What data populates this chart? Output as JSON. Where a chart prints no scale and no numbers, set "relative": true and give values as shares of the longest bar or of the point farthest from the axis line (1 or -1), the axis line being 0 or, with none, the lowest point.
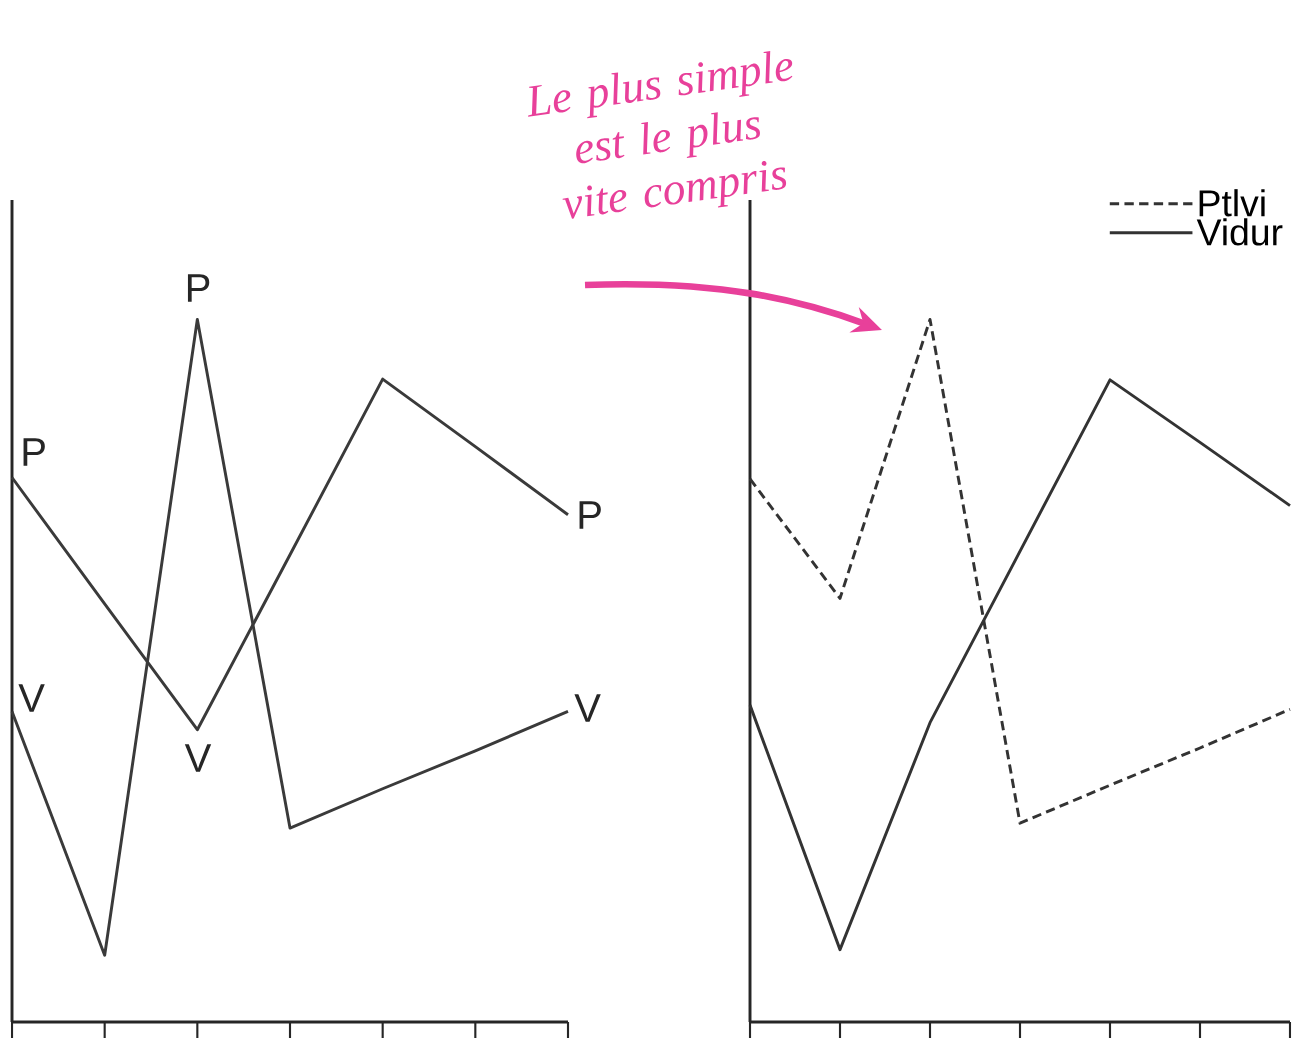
{
  "chart_data": [
    {
      "type": "line",
      "relative": true,
      "categories": [
        null,
        null,
        null,
        null,
        null,
        null,
        null
      ],
      "marker": "none",
      "series": [
        {
          "color": "#3a3a3a",
          "line_style": "solid",
          "values": [
            0.775,
            0.595,
            0.416,
            0.665,
            0.915,
            0.819,
            0.722
          ]
        },
        {
          "color": "#3a3a3a",
          "line_style": "solid",
          "values": [
            0.442,
            0.095,
            1.0,
            0.276,
            0.332,
            0.386,
            0.442
          ]
        }
      ],
      "annotations": [
        "P",
        "V",
        "P",
        "V",
        "P",
        "V"
      ]
    },
    {
      "type": "line",
      "relative": true,
      "categories": [
        null,
        null,
        null,
        null,
        null,
        null,
        null
      ],
      "marker": "none",
      "legend": "top right",
      "series": [
        {
          "name": "Ptlvi",
          "color": "#333333",
          "line_style": "dashed",
          "values": [
            0.773,
            0.603,
            1.0,
            0.283,
            0.337,
            0.39,
            0.445
          ]
        },
        {
          "name": "Vidur",
          "color": "#333333",
          "line_style": "solid",
          "values": [
            0.451,
            0.103,
            0.426,
            0.67,
            0.914,
            0.825,
            0.735
          ]
        }
      ],
      "annotations": [
        "Le plus simple est le plus vite compris"
      ]
    }
  ]
}
